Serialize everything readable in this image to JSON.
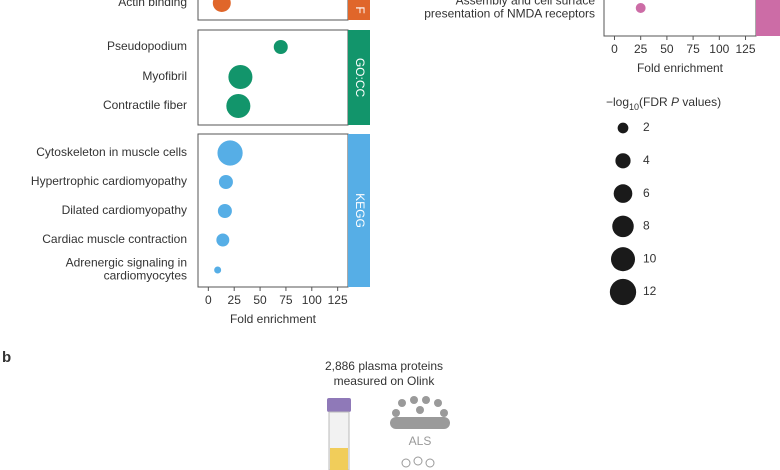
{
  "chart_data": [
    {
      "type": "bubble",
      "x_label": "Fold enrichment",
      "xlim": [
        -10,
        135
      ],
      "xticks": [
        0,
        25,
        50,
        75,
        100,
        125
      ],
      "facets": [
        {
          "name": "F",
          "color": "#e0662a",
          "categories": [
            "Actin binding"
          ],
          "values": [
            13
          ],
          "sizes": [
            5.6
          ]
        },
        {
          "name": "GO:CC",
          "color": "#12956b",
          "categories": [
            "Pseudopodium",
            "Myofibril",
            "Contractile fiber"
          ],
          "values": [
            70,
            31,
            29
          ],
          "sizes": [
            3.4,
            10,
            10
          ]
        },
        {
          "name": "KEGG",
          "color": "#56aee6",
          "categories": [
            "Cytoskeleton in muscle cells",
            "Hypertrophic cardiomyopathy",
            "Dilated cardiomyopathy",
            "Cardiac muscle contraction",
            [
              "Adrenergic signaling in",
              "cardiomyocytes"
            ]
          ],
          "values": [
            21,
            17,
            16,
            14,
            9
          ],
          "sizes": [
            11,
            3.4,
            3.4,
            2.9,
            0.85
          ]
        }
      ]
    },
    {
      "type": "bubble",
      "x_label": "Fold enrichment",
      "xlim": [
        -10,
        135
      ],
      "xticks": [
        0,
        25,
        50,
        75,
        100,
        125
      ],
      "facets": [
        {
          "color": "#cc6ca6",
          "categories": [
            [
              "Assembly and cell surface",
              "presentation of NMDA receptors"
            ]
          ],
          "values": [
            25
          ],
          "sizes": [
            1.7
          ]
        }
      ],
      "size_legend": {
        "title_parts": [
          "−log",
          "10",
          "(FDR ",
          "P",
          " values)"
        ],
        "values": [
          2,
          4,
          6,
          8,
          10,
          12
        ]
      }
    }
  ],
  "panel_b": {
    "letter": "b",
    "caption": [
      "2,886 plasma proteins",
      "measured on Olink"
    ],
    "group": "ALS"
  }
}
